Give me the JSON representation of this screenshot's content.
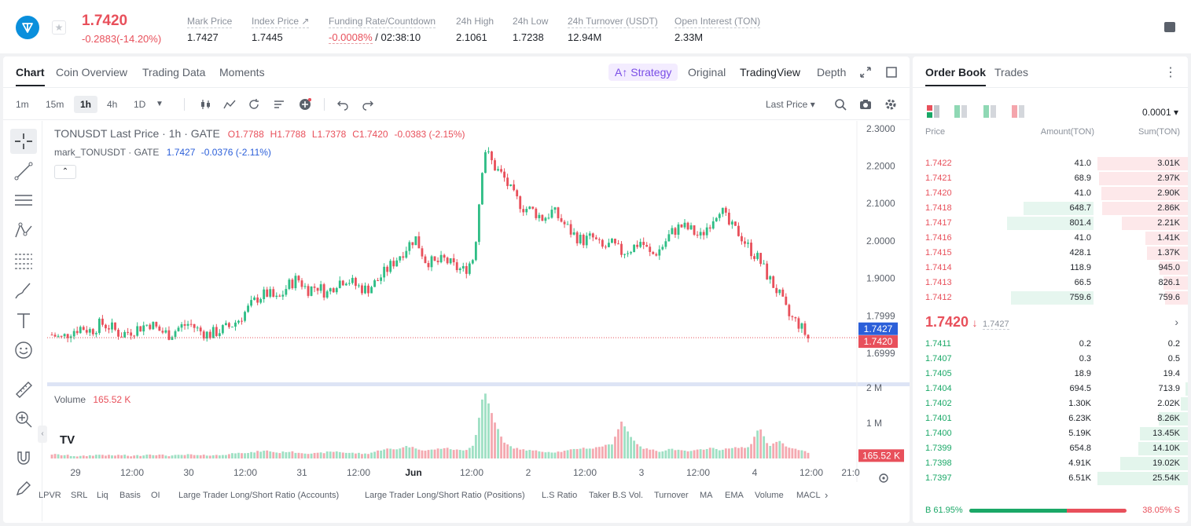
{
  "header": {
    "price": "1.7420",
    "change": "-0.2883(-14.20%)",
    "stats": [
      {
        "label": "Mark Price",
        "value": "1.7427"
      },
      {
        "label": "Index Price ↗",
        "value": "1.7445"
      },
      {
        "label": "Funding Rate/Countdown",
        "value_red": "-0.0008%",
        "value": " / 02:38:10"
      },
      {
        "label": "24h High",
        "value": "2.1061"
      },
      {
        "label": "24h Low",
        "value": "1.7238"
      },
      {
        "label": "24h Turnover (USDT)",
        "value": "12.94M"
      },
      {
        "label": "Open Interest (TON)",
        "value": "2.33M"
      }
    ]
  },
  "chart_tabs": [
    "Chart",
    "Coin Overview",
    "Trading Data",
    "Moments"
  ],
  "view_tabs": {
    "strategy": "Strategy",
    "original": "Original",
    "tradingview": "TradingView",
    "depth": "Depth"
  },
  "timeframes": [
    "1m",
    "15m",
    "1h",
    "4h",
    "1D"
  ],
  "last_price_select": "Last Price",
  "legend": {
    "title": "TONUSDT Last Price · 1h · GATE",
    "o": "O1.7788",
    "h": "H1.7788",
    "l": "L1.7378",
    "c": "C1.7420",
    "chg": "-0.0383 (-2.15%)",
    "mark": "mark_TONUSDT · GATE",
    "mark_val": "1.7427",
    "mark_chg": "-0.0376 (-2.11%)"
  },
  "volume_legend": {
    "label": "Volume",
    "value": "165.52 K"
  },
  "price_axis": [
    "2.3000",
    "2.2000",
    "2.1000",
    "2.0000",
    "1.9000",
    "1.7999",
    "1.6999"
  ],
  "price_tags": {
    "mark": "1.7427",
    "last": "1.7420"
  },
  "volume_axis": [
    "2 M",
    "1 M"
  ],
  "volume_tag": "165.52 K",
  "time_axis": [
    "29",
    "12:00",
    "30",
    "12:00",
    "31",
    "12:00",
    "Jun",
    "12:00",
    "2",
    "12:00",
    "3",
    "12:00",
    "4",
    "12:00",
    "21:0"
  ],
  "indicators": [
    "LPVR",
    "SRL",
    "Liq",
    "Basis",
    "OI",
    "Large Trader Long/Short Ratio (Accounts)",
    "Large Trader Long/Short Ratio (Positions)",
    "L.S Ratio",
    "Taker B.S Vol.",
    "Turnover",
    "MA",
    "EMA",
    "Volume",
    "MACL"
  ],
  "orderbook": {
    "tabs": [
      "Order Book",
      "Trades"
    ],
    "precision": "0.0001",
    "headers": {
      "price": "Price",
      "amount": "Amount(TON)",
      "sum": "Sum(TON)"
    },
    "asks": [
      {
        "p": "1.7422",
        "a": "41.0",
        "s": "3.01K",
        "sf": 1.0,
        "af": 0.0
      },
      {
        "p": "1.7421",
        "a": "68.9",
        "s": "2.97K",
        "sf": 0.98,
        "af": 0.0
      },
      {
        "p": "1.7420",
        "a": "41.0",
        "s": "2.90K",
        "sf": 0.96,
        "af": 0.0
      },
      {
        "p": "1.7418",
        "a": "648.7",
        "s": "2.86K",
        "sf": 0.95,
        "af": 0.81
      },
      {
        "p": "1.7417",
        "a": "801.4",
        "s": "2.21K",
        "sf": 0.73,
        "af": 1.0
      },
      {
        "p": "1.7416",
        "a": "41.0",
        "s": "1.41K",
        "sf": 0.47,
        "af": 0.0
      },
      {
        "p": "1.7415",
        "a": "428.1",
        "s": "1.37K",
        "sf": 0.45,
        "af": 0.0
      },
      {
        "p": "1.7414",
        "a": "118.9",
        "s": "945.0",
        "sf": 0.31,
        "af": 0.0
      },
      {
        "p": "1.7413",
        "a": "66.5",
        "s": "826.1",
        "sf": 0.27,
        "af": 0.0
      },
      {
        "p": "1.7412",
        "a": "759.6",
        "s": "759.6",
        "sf": 0.25,
        "af": 0.95
      }
    ],
    "mid_price": "1.7420",
    "mid_mark": "1.7427",
    "bids": [
      {
        "p": "1.7411",
        "a": "0.2",
        "s": "0.2",
        "sf": 0.0
      },
      {
        "p": "1.7407",
        "a": "0.3",
        "s": "0.5",
        "sf": 0.0
      },
      {
        "p": "1.7405",
        "a": "18.9",
        "s": "19.4",
        "sf": 0.0
      },
      {
        "p": "1.7404",
        "a": "694.5",
        "s": "713.9",
        "sf": 0.03
      },
      {
        "p": "1.7402",
        "a": "1.30K",
        "s": "2.02K",
        "sf": 0.08
      },
      {
        "p": "1.7401",
        "a": "6.23K",
        "s": "8.26K",
        "sf": 0.32
      },
      {
        "p": "1.7400",
        "a": "5.19K",
        "s": "13.45K",
        "sf": 0.53
      },
      {
        "p": "1.7399",
        "a": "654.8",
        "s": "14.10K",
        "sf": 0.55
      },
      {
        "p": "1.7398",
        "a": "4.91K",
        "s": "19.02K",
        "sf": 0.75
      },
      {
        "p": "1.7397",
        "a": "6.51K",
        "s": "25.54K",
        "sf": 1.0
      }
    ],
    "buy_ratio": "B 61.95%",
    "sell_ratio": "38.05% S",
    "buy_fraction": 0.6195
  },
  "chart_data": {
    "type": "candlestick",
    "y_range": [
      1.65,
      2.31
    ],
    "volume_range": [
      0,
      2000000
    ],
    "close_path": [
      1.75,
      1.74,
      1.76,
      1.77,
      1.76,
      1.78,
      1.77,
      1.75,
      1.76,
      1.77,
      1.78,
      1.76,
      1.75,
      1.77,
      1.78,
      1.76,
      1.75,
      1.76,
      1.77,
      1.79,
      1.82,
      1.85,
      1.86,
      1.84,
      1.88,
      1.9,
      1.87,
      1.88,
      1.86,
      1.89,
      1.9,
      1.88,
      1.87,
      1.89,
      1.92,
      1.95,
      1.98,
      2.01,
      1.95,
      1.94,
      1.95,
      1.93,
      1.92,
      1.96,
      2.25,
      2.2,
      2.17,
      2.12,
      2.09,
      2.08,
      2.06,
      2.08,
      2.05,
      2.02,
      2.0,
      2.01,
      1.98,
      1.99,
      1.97,
      1.98,
      2.0,
      1.96,
      1.98,
      2.02,
      2.04,
      2.03,
      2.01,
      2.05,
      2.09,
      2.04,
      2.02,
      1.98,
      1.95,
      1.9,
      1.86,
      1.8,
      1.78,
      1.74
    ],
    "volume_path": [
      0.12,
      0.1,
      0.08,
      0.06,
      0.09,
      0.11,
      0.08,
      0.1,
      0.07,
      0.09,
      0.12,
      0.1,
      0.08,
      0.09,
      0.11,
      0.08,
      0.1,
      0.09,
      0.12,
      0.18,
      0.15,
      0.2,
      0.22,
      0.16,
      0.2,
      0.17,
      0.15,
      0.14,
      0.18,
      0.2,
      0.16,
      0.15,
      0.13,
      0.2,
      0.28,
      0.25,
      0.35,
      0.3,
      0.22,
      0.26,
      0.3,
      0.25,
      0.22,
      0.4,
      1.95,
      1.1,
      0.45,
      0.3,
      0.25,
      0.22,
      0.2,
      0.18,
      0.2,
      0.25,
      0.3,
      0.28,
      0.35,
      0.4,
      1.05,
      0.6,
      0.3,
      0.25,
      0.2,
      0.28,
      0.22,
      0.2,
      0.25,
      0.3,
      0.25,
      0.28,
      0.32,
      0.3,
      0.9,
      0.35,
      0.5,
      0.3,
      0.25,
      0.17
    ]
  }
}
